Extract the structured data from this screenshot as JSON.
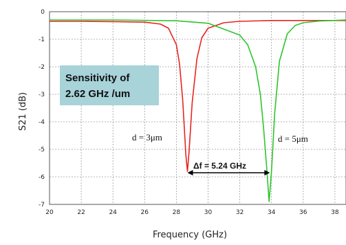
{
  "chart_data": {
    "type": "line",
    "title": "",
    "xlabel": "Frequency (GHz)",
    "ylabel": "S21 (dB)",
    "xlim": [
      20,
      38.7
    ],
    "ylim": [
      -7,
      0
    ],
    "xticks": [
      "20",
      "22",
      "24",
      "26",
      "28",
      "30",
      "32",
      "34",
      "36",
      "38"
    ],
    "yticks": [
      "0",
      "-1",
      "-2",
      "-3",
      "-4",
      "-5",
      "-6",
      "-7"
    ],
    "grid": true,
    "series": [
      {
        "color": "#e8231e",
        "x": [
          20,
          22,
          24,
          26,
          27,
          27.5,
          28,
          28.2,
          28.4,
          28.6,
          28.7,
          28.8,
          29,
          29.3,
          29.6,
          30,
          31,
          32,
          34,
          36,
          38.7
        ],
        "y": [
          -0.35,
          -0.35,
          -0.36,
          -0.38,
          -0.45,
          -0.6,
          -1.2,
          -1.9,
          -3.2,
          -5.2,
          -5.8,
          -5.1,
          -3.3,
          -1.7,
          -0.95,
          -0.6,
          -0.4,
          -0.35,
          -0.32,
          -0.32,
          -0.32
        ]
      },
      {
        "color": "#2cc52c",
        "x": [
          20,
          24,
          28,
          30,
          32,
          32.5,
          33,
          33.3,
          33.5,
          33.7,
          33.85,
          34,
          34.2,
          34.5,
          35,
          35.5,
          36,
          37,
          38.7
        ],
        "y": [
          -0.3,
          -0.3,
          -0.33,
          -0.42,
          -0.85,
          -1.2,
          -2.0,
          -3.0,
          -4.2,
          -5.7,
          -6.9,
          -5.8,
          -3.7,
          -1.8,
          -0.8,
          -0.5,
          -0.4,
          -0.34,
          -0.3
        ]
      }
    ],
    "annotations": {
      "sensitivity_line1": "Sensitivity of",
      "sensitivity_line2": "2.62 GHz /um",
      "label_d3": "d = 3μm",
      "label_d5": "d = 5μm",
      "delta_f": "Δf = 5.24 GHz",
      "delta_from": 28.7,
      "delta_to": 33.9,
      "delta_y": -5.85
    },
    "colors": {
      "sensitivity_box": "#a7d3d9"
    }
  }
}
